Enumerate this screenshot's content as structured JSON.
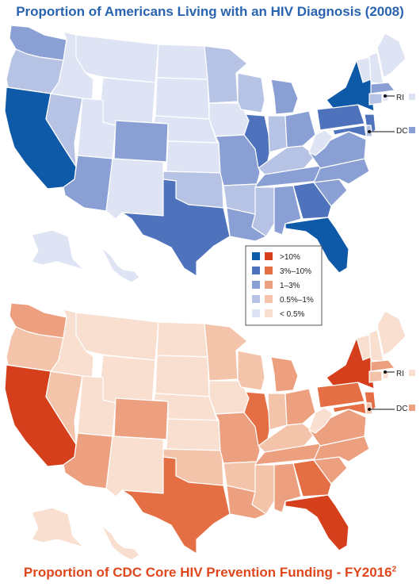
{
  "top_map": {
    "title": "Proportion of Americans Living with an HIV Diagnosis (2008)",
    "palette": [
      "#0f5aa8",
      "#4f72bd",
      "#8a9fd3",
      "#b6c3e4",
      "#dfe4f4"
    ]
  },
  "bottom_map": {
    "title": "Proportion of CDC Core HIV Prevention Funding - FY2016",
    "superscript": "2",
    "palette": [
      "#d63f1c",
      "#e56f45",
      "#eda080",
      "#f3c4aa",
      "#f8dfd0"
    ]
  },
  "legend": {
    "categories": [
      ">10%",
      "3%–10%",
      "1–3%",
      "0.5%–1%",
      "< 0.5%"
    ]
  },
  "callouts": {
    "rhode_island": "RI",
    "district_of_columbia": "DC"
  },
  "states": [
    {
      "abbr": "CA",
      "hiv": 0,
      "funding": 0
    },
    {
      "abbr": "NY",
      "hiv": 0,
      "funding": 0
    },
    {
      "abbr": "FL",
      "hiv": 0,
      "funding": 0
    },
    {
      "abbr": "TX",
      "hiv": 1,
      "funding": 1
    },
    {
      "abbr": "GA",
      "hiv": 1,
      "funding": 1
    },
    {
      "abbr": "IL",
      "hiv": 1,
      "funding": 1
    },
    {
      "abbr": "PA",
      "hiv": 1,
      "funding": 1
    },
    {
      "abbr": "NJ",
      "hiv": 1,
      "funding": 1
    },
    {
      "abbr": "MD",
      "hiv": 1,
      "funding": 1
    },
    {
      "abbr": "WA",
      "hiv": 2,
      "funding": 2
    },
    {
      "abbr": "AZ",
      "hiv": 2,
      "funding": 2
    },
    {
      "abbr": "CO",
      "hiv": 2,
      "funding": 2
    },
    {
      "abbr": "MI",
      "hiv": 2,
      "funding": 2
    },
    {
      "abbr": "OH",
      "hiv": 2,
      "funding": 2
    },
    {
      "abbr": "NC",
      "hiv": 2,
      "funding": 2
    },
    {
      "abbr": "VA",
      "hiv": 2,
      "funding": 2
    },
    {
      "abbr": "MA",
      "hiv": 2,
      "funding": 2
    },
    {
      "abbr": "TN",
      "hiv": 2,
      "funding": 2
    },
    {
      "abbr": "LA",
      "hiv": 2,
      "funding": 2
    },
    {
      "abbr": "SC",
      "hiv": 2,
      "funding": 2
    },
    {
      "abbr": "AL",
      "hiv": 2,
      "funding": 2
    },
    {
      "abbr": "MO",
      "hiv": 2,
      "funding": 2
    },
    {
      "abbr": "IN",
      "hiv": 3,
      "funding": 3
    },
    {
      "abbr": "CT",
      "hiv": 3,
      "funding": 3
    },
    {
      "abbr": "MN",
      "hiv": 3,
      "funding": 3
    },
    {
      "abbr": "WI",
      "hiv": 3,
      "funding": 3
    },
    {
      "abbr": "OR",
      "hiv": 3,
      "funding": 3
    },
    {
      "abbr": "NV",
      "hiv": 3,
      "funding": 3
    },
    {
      "abbr": "OK",
      "hiv": 3,
      "funding": 3
    },
    {
      "abbr": "AR",
      "hiv": 3,
      "funding": 3
    },
    {
      "abbr": "MS",
      "hiv": 3,
      "funding": 3
    },
    {
      "abbr": "KY",
      "hiv": 3,
      "funding": 3
    },
    {
      "abbr": "DE",
      "hiv": 3,
      "funding": 3
    },
    {
      "abbr": "ID",
      "hiv": 4,
      "funding": 4
    },
    {
      "abbr": "MT",
      "hiv": 4,
      "funding": 4
    },
    {
      "abbr": "WY",
      "hiv": 4,
      "funding": 4
    },
    {
      "abbr": "UT",
      "hiv": 4,
      "funding": 4
    },
    {
      "abbr": "NM",
      "hiv": 4,
      "funding": 4
    },
    {
      "abbr": "ND",
      "hiv": 4,
      "funding": 4
    },
    {
      "abbr": "SD",
      "hiv": 4,
      "funding": 4
    },
    {
      "abbr": "NE",
      "hiv": 4,
      "funding": 4
    },
    {
      "abbr": "KS",
      "hiv": 4,
      "funding": 4
    },
    {
      "abbr": "IA",
      "hiv": 4,
      "funding": 4
    },
    {
      "abbr": "WV",
      "hiv": 4,
      "funding": 4
    },
    {
      "abbr": "ME",
      "hiv": 4,
      "funding": 4
    },
    {
      "abbr": "NH",
      "hiv": 4,
      "funding": 4
    },
    {
      "abbr": "VT",
      "hiv": 4,
      "funding": 4
    },
    {
      "abbr": "AK",
      "hiv": 4,
      "funding": 4
    },
    {
      "abbr": "HI",
      "hiv": 4,
      "funding": 4
    },
    {
      "abbr": "RI",
      "hiv": 4,
      "funding": 4
    },
    {
      "abbr": "DC",
      "hiv": 2,
      "funding": 2
    }
  ]
}
